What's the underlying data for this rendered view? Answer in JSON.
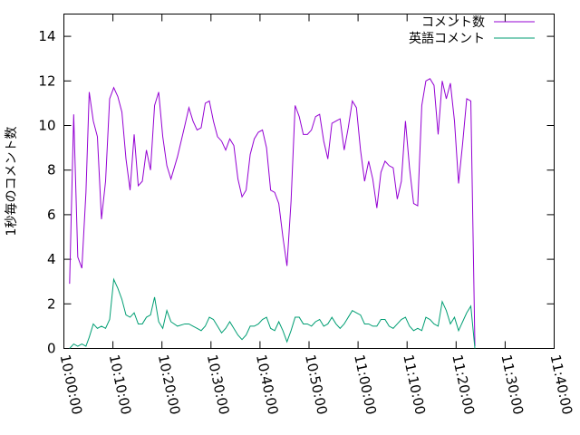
{
  "chart_data": {
    "type": "line",
    "title": "",
    "xlabel": "",
    "ylabel": "1秒毎のコメント数",
    "xlim": [
      "10:00:00",
      "11:40:00"
    ],
    "ylim": [
      0,
      15
    ],
    "x_ticks": [
      "10:00:00",
      "10:10:00",
      "10:20:00",
      "10:30:00",
      "10:40:00",
      "10:50:00",
      "11:00:00",
      "11:10:00",
      "11:20:00",
      "11:30:00",
      "11:40:00"
    ],
    "y_ticks": [
      "0",
      "2",
      "4",
      "6",
      "8",
      "10",
      "12",
      "14"
    ],
    "grid": false,
    "legend_position": "top-right",
    "series": [
      {
        "name": "コメント数",
        "color": "#9400d3",
        "points": [
          [
            "10:01:10",
            2.9
          ],
          [
            "10:02:00",
            10.5
          ],
          [
            "10:02:50",
            4.1
          ],
          [
            "10:03:40",
            3.6
          ],
          [
            "10:04:30",
            7.0
          ],
          [
            "10:05:10",
            11.5
          ],
          [
            "10:06:00",
            10.2
          ],
          [
            "10:06:50",
            9.5
          ],
          [
            "10:07:40",
            5.8
          ],
          [
            "10:08:30",
            7.5
          ],
          [
            "10:09:20",
            11.2
          ],
          [
            "10:10:10",
            11.7
          ],
          [
            "10:11:00",
            11.3
          ],
          [
            "10:11:50",
            10.6
          ],
          [
            "10:12:40",
            8.5
          ],
          [
            "10:13:30",
            7.1
          ],
          [
            "10:14:20",
            9.6
          ],
          [
            "10:15:10",
            7.3
          ],
          [
            "10:16:00",
            7.5
          ],
          [
            "10:16:50",
            8.9
          ],
          [
            "10:17:40",
            8.0
          ],
          [
            "10:18:30",
            10.9
          ],
          [
            "10:19:20",
            11.5
          ],
          [
            "10:20:10",
            9.5
          ],
          [
            "10:21:00",
            8.2
          ],
          [
            "10:21:50",
            7.6
          ],
          [
            "10:23:10",
            8.6
          ],
          [
            "10:24:40",
            10.0
          ],
          [
            "10:25:30",
            10.8
          ],
          [
            "10:26:20",
            10.2
          ],
          [
            "10:27:10",
            9.8
          ],
          [
            "10:28:00",
            9.9
          ],
          [
            "10:28:50",
            11.0
          ],
          [
            "10:29:40",
            11.1
          ],
          [
            "10:30:30",
            10.2
          ],
          [
            "10:31:20",
            9.5
          ],
          [
            "10:32:10",
            9.3
          ],
          [
            "10:33:00",
            8.9
          ],
          [
            "10:33:50",
            9.4
          ],
          [
            "10:34:40",
            9.1
          ],
          [
            "10:35:30",
            7.6
          ],
          [
            "10:36:20",
            6.8
          ],
          [
            "10:37:10",
            7.1
          ],
          [
            "10:38:00",
            8.7
          ],
          [
            "10:38:50",
            9.4
          ],
          [
            "10:39:40",
            9.7
          ],
          [
            "10:40:30",
            9.8
          ],
          [
            "10:41:20",
            9.0
          ],
          [
            "10:42:10",
            7.1
          ],
          [
            "10:43:00",
            7.0
          ],
          [
            "10:43:50",
            6.5
          ],
          [
            "10:44:40",
            5.0
          ],
          [
            "10:45:30",
            3.7
          ],
          [
            "10:46:20",
            6.6
          ],
          [
            "10:47:10",
            10.9
          ],
          [
            "10:48:00",
            10.4
          ],
          [
            "10:48:50",
            9.6
          ],
          [
            "10:49:40",
            9.6
          ],
          [
            "10:50:30",
            9.8
          ],
          [
            "10:51:20",
            10.4
          ],
          [
            "10:52:10",
            10.5
          ],
          [
            "10:53:00",
            9.3
          ],
          [
            "10:53:50",
            8.5
          ],
          [
            "10:54:40",
            10.1
          ],
          [
            "10:55:30",
            10.2
          ],
          [
            "10:56:20",
            10.3
          ],
          [
            "10:57:10",
            8.9
          ],
          [
            "10:58:00",
            9.9
          ],
          [
            "10:58:50",
            11.1
          ],
          [
            "10:59:40",
            10.8
          ],
          [
            "11:00:30",
            8.9
          ],
          [
            "11:01:20",
            7.5
          ],
          [
            "11:02:10",
            8.4
          ],
          [
            "11:03:00",
            7.6
          ],
          [
            "11:03:50",
            6.3
          ],
          [
            "11:04:40",
            7.9
          ],
          [
            "11:05:30",
            8.4
          ],
          [
            "11:06:20",
            8.2
          ],
          [
            "11:07:10",
            8.1
          ],
          [
            "11:08:00",
            6.7
          ],
          [
            "11:08:50",
            7.5
          ],
          [
            "11:09:40",
            10.2
          ],
          [
            "11:10:30",
            8.1
          ],
          [
            "11:11:20",
            6.5
          ],
          [
            "11:12:10",
            6.4
          ],
          [
            "11:13:00",
            10.9
          ],
          [
            "11:13:50",
            12.0
          ],
          [
            "11:14:40",
            12.1
          ],
          [
            "11:15:30",
            11.8
          ],
          [
            "11:16:20",
            9.6
          ],
          [
            "11:17:10",
            12.0
          ],
          [
            "11:18:00",
            11.2
          ],
          [
            "11:18:50",
            11.9
          ],
          [
            "11:19:40",
            10.2
          ],
          [
            "11:20:30",
            7.4
          ],
          [
            "11:21:20",
            9.2
          ],
          [
            "11:22:10",
            11.2
          ],
          [
            "11:23:00",
            11.1
          ],
          [
            "11:23:50",
            0.1
          ]
        ]
      },
      {
        "name": "英語コメント",
        "color": "#009e73",
        "points": [
          [
            "10:01:10",
            0.0
          ],
          [
            "10:02:00",
            0.2
          ],
          [
            "10:02:50",
            0.1
          ],
          [
            "10:03:40",
            0.2
          ],
          [
            "10:04:30",
            0.1
          ],
          [
            "10:05:10",
            0.5
          ],
          [
            "10:06:00",
            1.1
          ],
          [
            "10:06:50",
            0.9
          ],
          [
            "10:07:40",
            1.0
          ],
          [
            "10:08:30",
            0.9
          ],
          [
            "10:09:20",
            1.3
          ],
          [
            "10:10:10",
            3.1
          ],
          [
            "10:11:00",
            2.7
          ],
          [
            "10:11:50",
            2.2
          ],
          [
            "10:12:40",
            1.5
          ],
          [
            "10:13:30",
            1.4
          ],
          [
            "10:14:20",
            1.6
          ],
          [
            "10:15:10",
            1.1
          ],
          [
            "10:16:00",
            1.1
          ],
          [
            "10:16:50",
            1.4
          ],
          [
            "10:17:40",
            1.5
          ],
          [
            "10:18:30",
            2.3
          ],
          [
            "10:19:20",
            1.2
          ],
          [
            "10:20:10",
            0.9
          ],
          [
            "10:21:00",
            1.7
          ],
          [
            "10:21:50",
            1.2
          ],
          [
            "10:23:10",
            1.0
          ],
          [
            "10:24:40",
            1.1
          ],
          [
            "10:25:30",
            1.1
          ],
          [
            "10:26:20",
            1.0
          ],
          [
            "10:27:10",
            0.9
          ],
          [
            "10:28:00",
            0.8
          ],
          [
            "10:28:50",
            1.0
          ],
          [
            "10:29:40",
            1.4
          ],
          [
            "10:30:30",
            1.3
          ],
          [
            "10:31:20",
            1.0
          ],
          [
            "10:32:10",
            0.7
          ],
          [
            "10:33:00",
            0.9
          ],
          [
            "10:33:50",
            1.2
          ],
          [
            "10:34:40",
            0.9
          ],
          [
            "10:35:30",
            0.6
          ],
          [
            "10:36:20",
            0.4
          ],
          [
            "10:37:10",
            0.6
          ],
          [
            "10:38:00",
            1.0
          ],
          [
            "10:38:50",
            1.0
          ],
          [
            "10:39:40",
            1.1
          ],
          [
            "10:40:30",
            1.3
          ],
          [
            "10:41:20",
            1.4
          ],
          [
            "10:42:10",
            0.9
          ],
          [
            "10:43:00",
            0.8
          ],
          [
            "10:43:50",
            1.2
          ],
          [
            "10:44:40",
            0.8
          ],
          [
            "10:45:30",
            0.3
          ],
          [
            "10:46:20",
            0.8
          ],
          [
            "10:47:10",
            1.4
          ],
          [
            "10:48:00",
            1.4
          ],
          [
            "10:48:50",
            1.1
          ],
          [
            "10:49:40",
            1.1
          ],
          [
            "10:50:30",
            1.0
          ],
          [
            "10:51:20",
            1.2
          ],
          [
            "10:52:10",
            1.3
          ],
          [
            "10:53:00",
            1.0
          ],
          [
            "10:53:50",
            1.1
          ],
          [
            "10:54:40",
            1.4
          ],
          [
            "10:55:30",
            1.1
          ],
          [
            "10:56:20",
            0.9
          ],
          [
            "10:57:10",
            1.1
          ],
          [
            "10:58:00",
            1.4
          ],
          [
            "10:58:50",
            1.7
          ],
          [
            "10:59:40",
            1.6
          ],
          [
            "11:00:30",
            1.5
          ],
          [
            "11:01:20",
            1.1
          ],
          [
            "11:02:10",
            1.1
          ],
          [
            "11:03:00",
            1.0
          ],
          [
            "11:03:50",
            1.0
          ],
          [
            "11:04:40",
            1.3
          ],
          [
            "11:05:30",
            1.3
          ],
          [
            "11:06:20",
            1.0
          ],
          [
            "11:07:10",
            0.9
          ],
          [
            "11:08:00",
            1.1
          ],
          [
            "11:08:50",
            1.3
          ],
          [
            "11:09:40",
            1.4
          ],
          [
            "11:10:30",
            1.0
          ],
          [
            "11:11:20",
            0.8
          ],
          [
            "11:12:10",
            0.9
          ],
          [
            "11:13:00",
            0.8
          ],
          [
            "11:13:50",
            1.4
          ],
          [
            "11:14:40",
            1.3
          ],
          [
            "11:15:30",
            1.1
          ],
          [
            "11:16:20",
            1.0
          ],
          [
            "11:17:10",
            2.1
          ],
          [
            "11:18:00",
            1.7
          ],
          [
            "11:18:50",
            1.1
          ],
          [
            "11:19:40",
            1.4
          ],
          [
            "11:20:30",
            0.8
          ],
          [
            "11:21:20",
            1.2
          ],
          [
            "11:22:10",
            1.6
          ],
          [
            "11:23:00",
            1.9
          ],
          [
            "11:23:50",
            0.0
          ]
        ]
      }
    ]
  }
}
